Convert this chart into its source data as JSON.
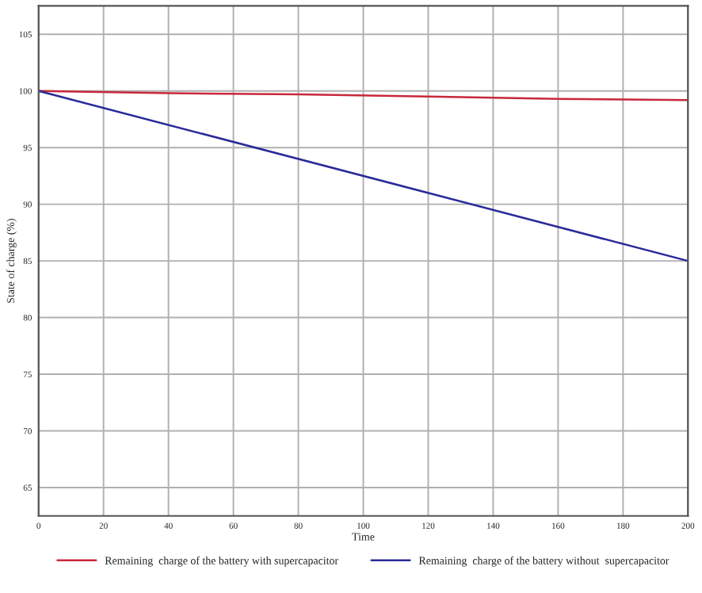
{
  "chart_data": {
    "type": "line",
    "xlabel": "Time",
    "ylabel": "State of charge (%)",
    "xlim": [
      0,
      200
    ],
    "xticks": [
      0,
      20,
      40,
      60,
      80,
      100,
      120,
      140,
      160,
      180,
      200
    ],
    "ylim": [
      62.5,
      107.5
    ],
    "yticks": [
      65,
      70,
      75,
      80,
      85,
      90,
      95,
      100,
      105
    ],
    "grid": true,
    "legend": "bottom",
    "marker": "none",
    "line_style": "solid",
    "series": [
      {
        "name": "Remaining  charge of the battery with supercapacitor",
        "color": "#c8283c",
        "x": [
          0,
          40,
          80,
          120,
          160,
          200
        ],
        "values": [
          100,
          99.8,
          99.7,
          99.5,
          99.3,
          99.2
        ]
      },
      {
        "name": "Remaining  charge of the battery without  supercapacitor",
        "color": "#2a2a9a",
        "x": [
          0,
          200
        ],
        "values": [
          100,
          85
        ]
      }
    ]
  }
}
